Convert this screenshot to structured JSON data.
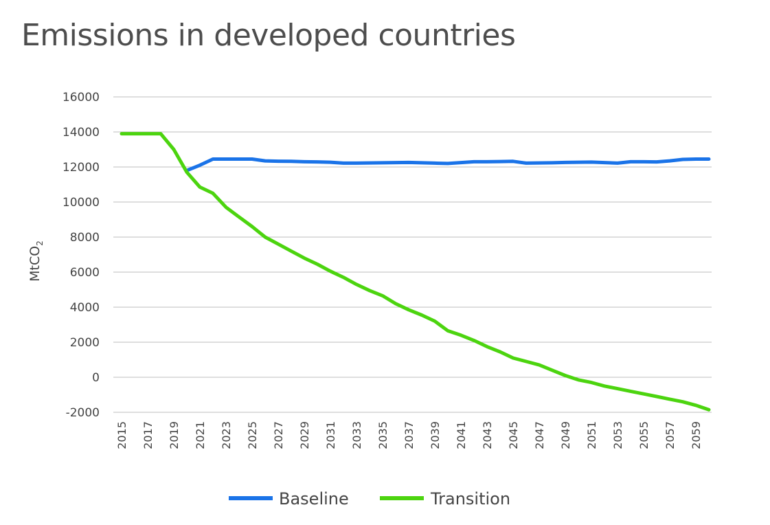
{
  "chart_data": {
    "type": "line",
    "title": "Emissions in developed countries",
    "xlabel": "",
    "ylabel_main": "MtCO",
    "ylabel_sub": "2",
    "ylim": [
      -2000,
      16000
    ],
    "yticks": [
      -2000,
      0,
      2000,
      4000,
      6000,
      8000,
      10000,
      12000,
      14000,
      16000
    ],
    "xticks": [
      "2015",
      "2017",
      "2019",
      "2021",
      "2023",
      "2025",
      "2027",
      "2029",
      "2031",
      "2033",
      "2035",
      "2037",
      "2039",
      "2041",
      "2043",
      "2045",
      "2047",
      "2049",
      "2051",
      "2053",
      "2055",
      "2057",
      "2059"
    ],
    "grid": true,
    "legend_position": "bottom",
    "colors": {
      "Baseline": "#1a73e8",
      "Transition": "#4cd40f"
    },
    "x": [
      2015,
      2016,
      2017,
      2018,
      2019,
      2020,
      2021,
      2022,
      2023,
      2024,
      2025,
      2026,
      2027,
      2028,
      2029,
      2030,
      2031,
      2032,
      2033,
      2034,
      2035,
      2036,
      2037,
      2038,
      2039,
      2040,
      2041,
      2042,
      2043,
      2044,
      2045,
      2046,
      2047,
      2048,
      2049,
      2050,
      2051,
      2052,
      2053,
      2054,
      2055,
      2056,
      2057,
      2058,
      2059,
      2060
    ],
    "series": [
      {
        "name": "Baseline",
        "values": [
          null,
          null,
          null,
          null,
          null,
          11800,
          12100,
          12450,
          12450,
          12450,
          12450,
          12350,
          12330,
          12320,
          12300,
          12290,
          12270,
          12220,
          12220,
          12230,
          12240,
          12250,
          12260,
          12240,
          12220,
          12200,
          12250,
          12300,
          12300,
          12310,
          12320,
          12220,
          12230,
          12240,
          12260,
          12270,
          12280,
          12250,
          12220,
          12300,
          12300,
          12290,
          12350,
          12430,
          12450,
          12450
        ]
      },
      {
        "name": "Transition",
        "values": [
          13900,
          13900,
          13900,
          13900,
          13000,
          11700,
          10850,
          10500,
          9700,
          9150,
          8600,
          8000,
          7600,
          7200,
          6800,
          6450,
          6050,
          5700,
          5300,
          4950,
          4650,
          4200,
          3850,
          3550,
          3200,
          2650,
          2400,
          2100,
          1750,
          1450,
          1100,
          900,
          700,
          400,
          100,
          -150,
          -300,
          -500,
          -650,
          -800,
          -950,
          -1100,
          -1250,
          -1400,
          -1600,
          -1850
        ]
      }
    ]
  }
}
